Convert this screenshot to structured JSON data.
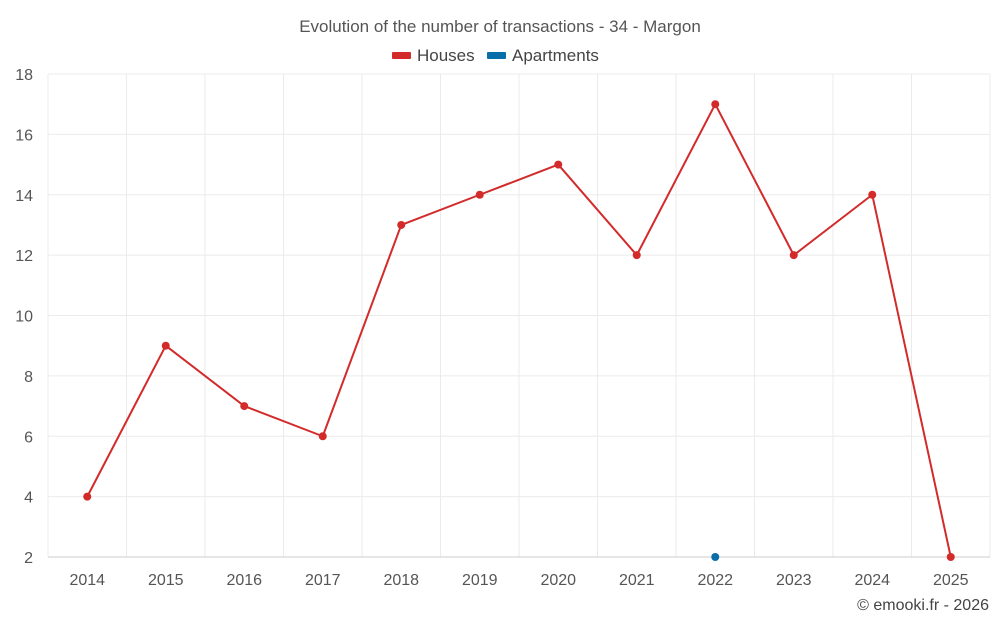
{
  "chart_data": {
    "type": "line",
    "title": "Evolution of the number of transactions - 34 - Margon",
    "categories": [
      "2014",
      "2015",
      "2016",
      "2017",
      "2018",
      "2019",
      "2020",
      "2021",
      "2022",
      "2023",
      "2024",
      "2025"
    ],
    "series": [
      {
        "name": "Houses",
        "color": "#d32a2a",
        "values": [
          4,
          9,
          7,
          6,
          13,
          14,
          15,
          12,
          17,
          12,
          14,
          2
        ]
      },
      {
        "name": "Apartments",
        "color": "#0a6ea8",
        "values": [
          null,
          null,
          null,
          null,
          null,
          null,
          null,
          null,
          2,
          null,
          null,
          null
        ]
      }
    ],
    "ylim": [
      2,
      18
    ],
    "yticks": [
      2,
      4,
      6,
      8,
      10,
      12,
      14,
      16,
      18
    ],
    "grid": true,
    "legend_position": "top-center",
    "credit": "© emooki.fr - 2026"
  }
}
